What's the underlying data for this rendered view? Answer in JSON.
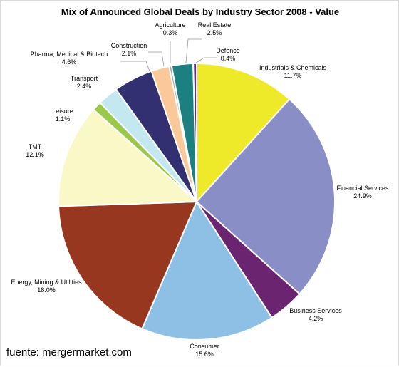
{
  "chart_data": {
    "type": "pie",
    "title": "Mix of Announced Global Deals by Industry Sector 2008 - Value",
    "categories": [
      "Industrials & Chemicals",
      "Financial Services",
      "Business Services",
      "Consumer",
      "Energy, Mining & Utilities",
      "TMT",
      "Leisure",
      "Transport",
      "Pharma, Medical & Biotech",
      "Construction",
      "Agriculture",
      "Real Estate",
      "Defence"
    ],
    "values": [
      11.7,
      24.9,
      4.2,
      15.6,
      18.0,
      12.1,
      1.1,
      2.4,
      4.6,
      2.1,
      0.3,
      2.5,
      0.4
    ],
    "value_labels": [
      "11.7%",
      "24.9%",
      "4.2%",
      "15.6%",
      "18.0%",
      "12.1%",
      "1.1%",
      "2.4%",
      "4.6%",
      "2.1%",
      "0.3%",
      "2.5%",
      "0.4%"
    ],
    "colors": [
      "#EEEA2A",
      "#8A8EC6",
      "#6A2470",
      "#8EC0E6",
      "#973720",
      "#FAF8C6",
      "#99C84A",
      "#C4E8F0",
      "#323070",
      "#FBC89A",
      "#8CB4B4",
      "#1C8080",
      "#6C2A84"
    ],
    "start_angle_deg": 0,
    "direction": "clockwise",
    "legend": "none"
  },
  "source": "fuente: mergermarket.com"
}
